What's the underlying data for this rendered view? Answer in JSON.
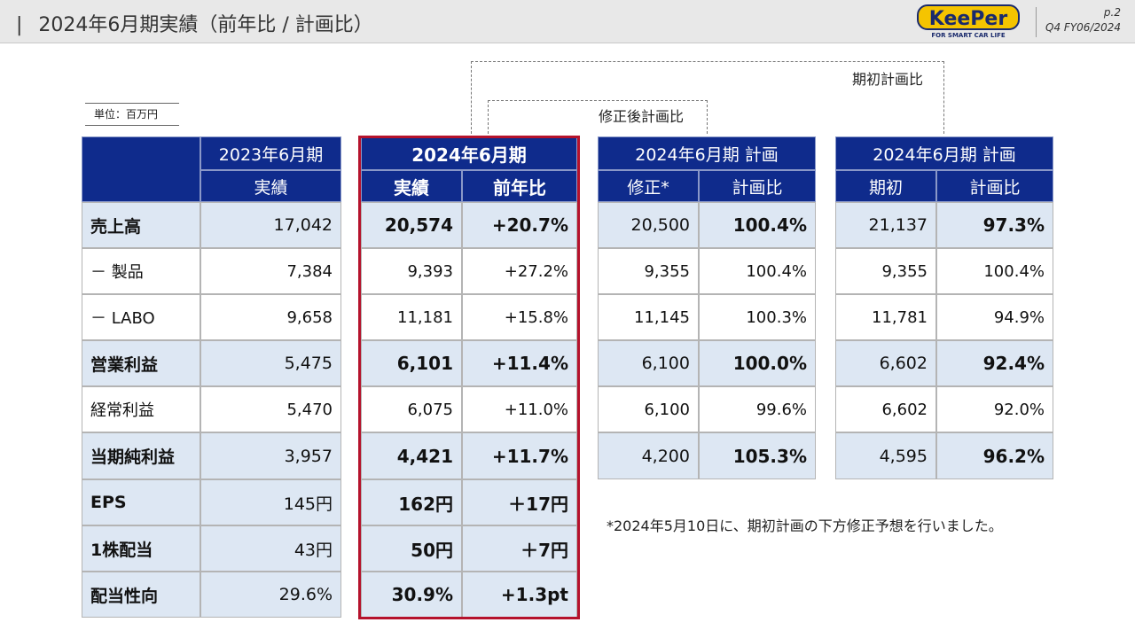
{
  "header": {
    "title": "2024年6月期実績（前年比 / 計画比）",
    "page": "p.2",
    "period": "Q4 FY06/2024",
    "logo_text": "KeePer",
    "logo_tagline": "FOR SMART CAR LIFE"
  },
  "unit": "単位：百万円",
  "brackets": {
    "initial": "期初計画比",
    "revised": "修正後計画比"
  },
  "headers": {
    "prev_period": "2023年6月期",
    "prev_sub": "実績",
    "cur_period": "2024年6月期",
    "cur_sub1": "実績",
    "cur_sub2": "前年比",
    "rev_period": "2024年6月期 計画",
    "rev_sub1": "修正*",
    "rev_sub2": "計画比",
    "ini_period": "2024年6月期 計画",
    "ini_sub1": "期初",
    "ini_sub2": "計画比"
  },
  "rows": [
    {
      "label": "売上高",
      "prev": "17,042",
      "cur": "20,574",
      "yoy": "+20.7%",
      "rev": "20,500",
      "rev_ratio": "100.4%",
      "ini": "21,137",
      "ini_ratio": "97.3%"
    },
    {
      "label": "－ 製品",
      "prev": "7,384",
      "cur": "9,393",
      "yoy": "+27.2%",
      "rev": "9,355",
      "rev_ratio": "100.4%",
      "ini": "9,355",
      "ini_ratio": "100.4%"
    },
    {
      "label": "－ LABO",
      "prev": "9,658",
      "cur": "11,181",
      "yoy": "+15.8%",
      "rev": "11,145",
      "rev_ratio": "100.3%",
      "ini": "11,781",
      "ini_ratio": "94.9%"
    },
    {
      "label": "営業利益",
      "prev": "5,475",
      "cur": "6,101",
      "yoy": "+11.4%",
      "rev": "6,100",
      "rev_ratio": "100.0%",
      "ini": "6,602",
      "ini_ratio": "92.4%"
    },
    {
      "label": "経常利益",
      "prev": "5,470",
      "cur": "6,075",
      "yoy": "+11.0%",
      "rev": "6,100",
      "rev_ratio": "99.6%",
      "ini": "6,602",
      "ini_ratio": "92.0%"
    },
    {
      "label": "当期純利益",
      "prev": "3,957",
      "cur": "4,421",
      "yoy": "+11.7%",
      "rev": "4,200",
      "rev_ratio": "105.3%",
      "ini": "4,595",
      "ini_ratio": "96.2%"
    },
    {
      "label": "EPS",
      "prev": "145円",
      "cur": "162円",
      "yoy": "＋17円"
    },
    {
      "label": "1株配当",
      "prev": "43円",
      "cur": "50円",
      "yoy": "＋7円"
    },
    {
      "label": "配当性向",
      "prev": "29.6%",
      "cur": "30.9%",
      "yoy": "+1.3pt"
    }
  ],
  "footnote": "*2024年5月10日に、期初計画の下方修正予想を行いました。"
}
